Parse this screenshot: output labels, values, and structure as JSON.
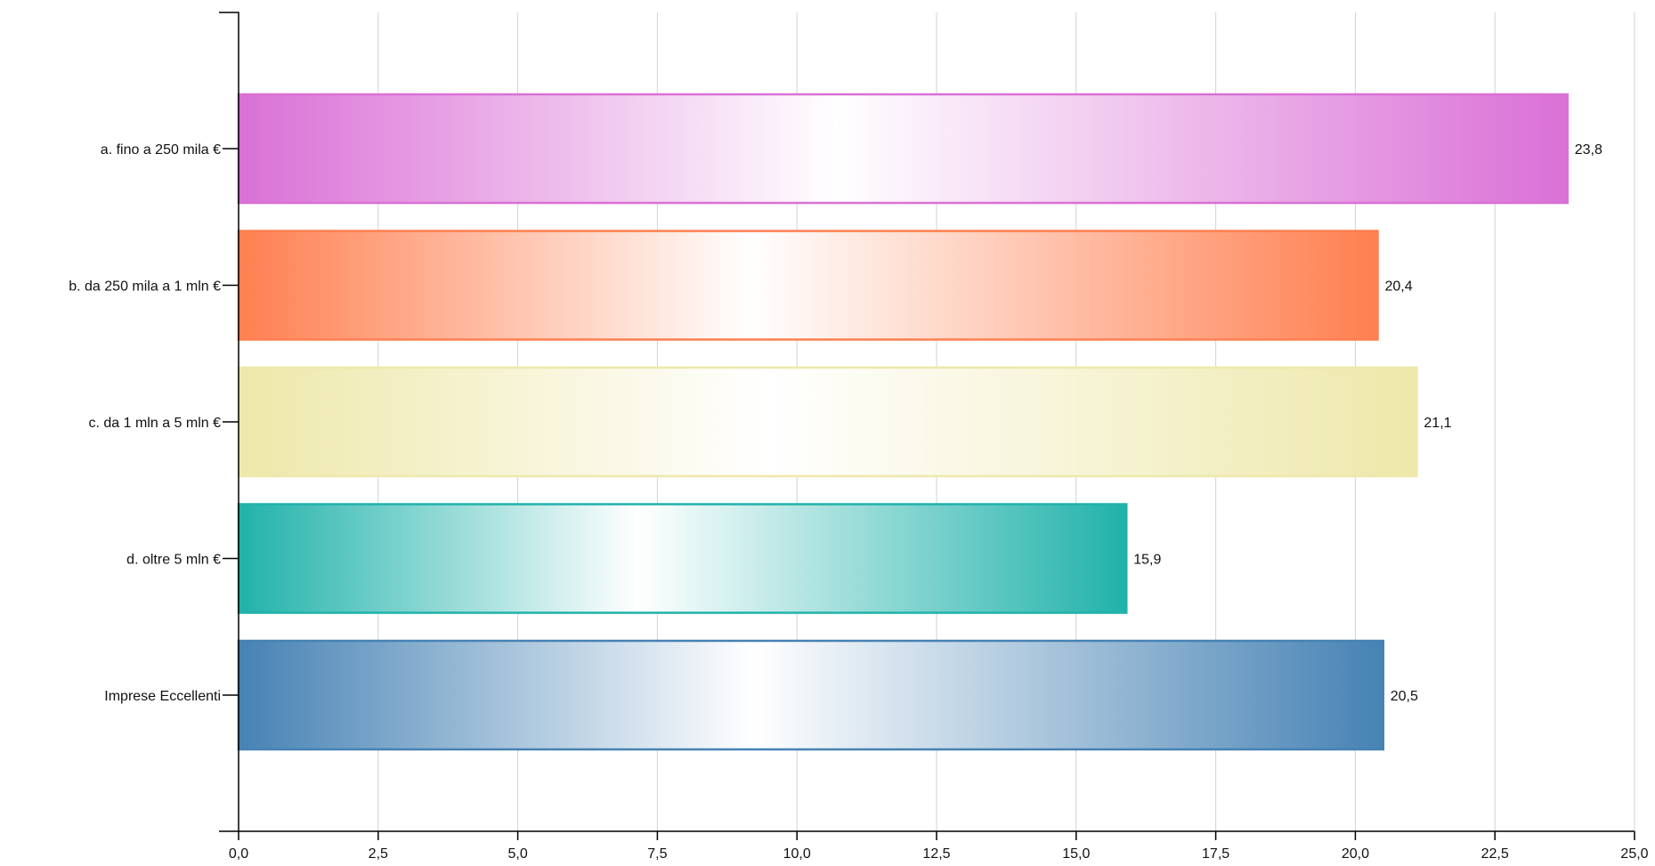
{
  "chart_data": {
    "type": "bar",
    "orientation": "horizontal",
    "categories": [
      "a. fino a 250 mila €",
      "b. da 250 mila a 1 mln €",
      "c. da 1 mln a 5 mln €",
      "d. oltre 5 mln €",
      "Imprese Eccellenti"
    ],
    "values": [
      23.8,
      20.4,
      21.1,
      15.9,
      20.5
    ],
    "value_labels": [
      "23,8",
      "20,4",
      "21,1",
      "15,9",
      "20,5"
    ],
    "colors": [
      "#da70d6",
      "#ff7f50",
      "#eee8aa",
      "#20b2aa",
      "#4682b4"
    ],
    "xlim": [
      0,
      25
    ],
    "xticks": [
      0,
      2.5,
      5,
      7.5,
      10,
      12.5,
      15,
      17.5,
      20,
      22.5,
      25
    ],
    "xtick_labels": [
      "0,0",
      "2,5",
      "5,0",
      "7,5",
      "10,0",
      "12,5",
      "15,0",
      "17,5",
      "20,0",
      "22,5",
      "25,0"
    ],
    "grid": true,
    "title": "",
    "xlabel": "",
    "ylabel": ""
  }
}
